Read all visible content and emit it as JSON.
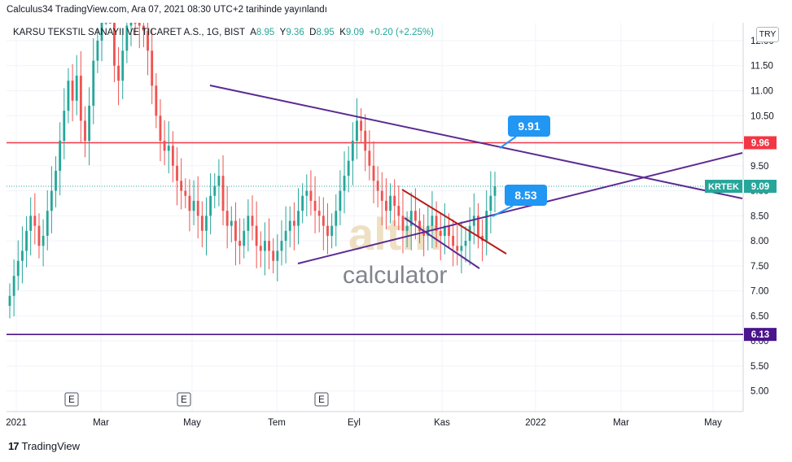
{
  "header": {
    "publish_line": "Calculus34 TradingView.com, Ara 07, 2021 08:30 UTC+2 tarihinde yayınlandı"
  },
  "symbol_bar": {
    "name": "KARSU TEKSTIL SANAYII VE TICARET A.S., 1G, BIST",
    "o_label": "A",
    "o_value": "8.95",
    "h_label": "Y",
    "h_value": "9.36",
    "l_label": "D",
    "l_value": "8.95",
    "c_label": "K",
    "c_value": "9.09",
    "change": "+0.20 (+2.25%)"
  },
  "currency": "TRY",
  "footer": {
    "logo": "17",
    "brand": "TradingView"
  },
  "watermark": {
    "text1": "altin",
    "text2": "calculator"
  },
  "colors": {
    "up": "#26a69a",
    "down": "#ef5350",
    "hline_red": "#f23645",
    "hline_purple": "#4a148c",
    "trend_purple": "#5b2a91",
    "callout": "#2196f3",
    "krtek_bg": "#26a69a"
  },
  "chart_data": {
    "type": "candlestick",
    "ylim": [
      4.75,
      12.25
    ],
    "y_ticks": [
      "12.00",
      "11.50",
      "11.00",
      "10.50",
      "10.00",
      "9.50",
      "9.00",
      "8.50",
      "8.00",
      "7.50",
      "7.00",
      "6.50",
      "6.00",
      "5.50",
      "5.00"
    ],
    "x_ticks": [
      "2021",
      "Mar",
      "May",
      "Tem",
      "Eyl",
      "Kas",
      "2022",
      "Mar",
      "May"
    ],
    "earnings_markers": [
      "E",
      "E",
      "E"
    ],
    "price_labels": [
      {
        "label": "",
        "value": "9.96",
        "color": "#f23645"
      },
      {
        "label": "KRTEK",
        "value": "9.09",
        "color": "#26a69a"
      },
      {
        "label": "",
        "value": "6.13",
        "color": "#4a148c"
      }
    ],
    "horizontal_lines": [
      {
        "value": 9.96,
        "color": "#f23645"
      },
      {
        "value": 6.13,
        "color": "#4a148c"
      },
      {
        "value": 9.09,
        "color": "#26a69a",
        "style": "dotted"
      }
    ],
    "callouts": [
      "9.91",
      "8.53"
    ],
    "close_prices": [
      6.9,
      7.3,
      7.6,
      7.8,
      8.2,
      8.5,
      8.3,
      7.9,
      8.1,
      8.6,
      9.0,
      9.4,
      10.0,
      10.6,
      11.2,
      10.8,
      11.3,
      10.4,
      10.0,
      10.7,
      11.6,
      12.0,
      12.6,
      13.2,
      12.8,
      11.5,
      11.2,
      11.8,
      12.3,
      12.6,
      12.4,
      12.3,
      12.2,
      11.8,
      11.1,
      10.5,
      10.0,
      9.8,
      9.9,
      9.5,
      9.2,
      9.0,
      8.9,
      8.6,
      8.8,
      8.5,
      8.2,
      8.5,
      8.9,
      9.1,
      9.3,
      8.6,
      8.3,
      8.4,
      8.0,
      7.9,
      8.2,
      8.5,
      8.3,
      7.9,
      7.8,
      8.0,
      7.8,
      7.6,
      7.8,
      8.0,
      8.2,
      8.4,
      8.3,
      8.6,
      8.9,
      9.0,
      8.8,
      8.6,
      8.5,
      8.3,
      8.1,
      8.3,
      8.6,
      9.0,
      9.3,
      9.6,
      10.0,
      10.4,
      10.2,
      9.8,
      9.5,
      9.2,
      9.0,
      8.8,
      8.6,
      8.9,
      8.7,
      8.5,
      8.2,
      8.3,
      8.6,
      8.4,
      8.2,
      8.1,
      8.3,
      8.5,
      8.2,
      8.1,
      8.3,
      8.1,
      7.9,
      7.8,
      7.9,
      8.0,
      8.3,
      8.5,
      8.1,
      8.0,
      8.6,
      8.9,
      9.09
    ]
  }
}
